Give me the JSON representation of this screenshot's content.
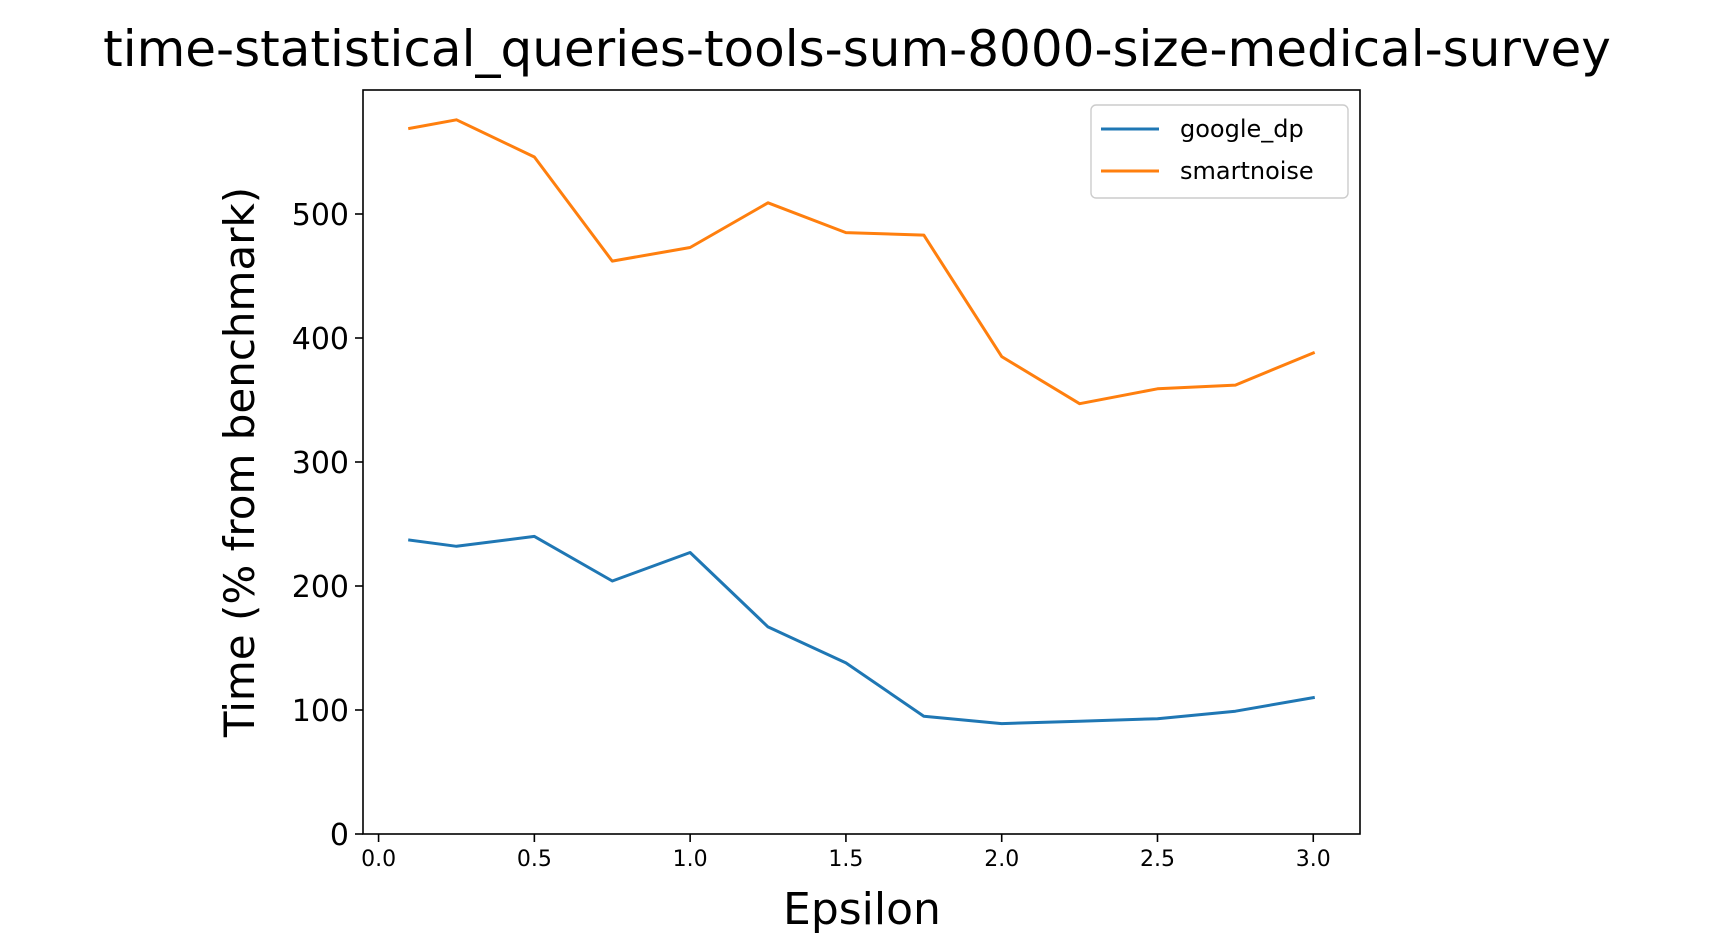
{
  "chart_data": {
    "type": "line",
    "title": "time-statistical_queries-tools-sum-8000-size-medical-survey",
    "xlabel": "Epsilon",
    "ylabel": "Time (% from benchmark)",
    "xlim": [
      -0.05,
      3.15
    ],
    "ylim": [
      0,
      600
    ],
    "xticks": [
      0.0,
      0.5,
      1.0,
      1.5,
      2.0,
      2.5,
      3.0
    ],
    "xtick_labels": [
      "0.0",
      "0.5",
      "1.0",
      "1.5",
      "2.0",
      "2.5",
      "3.0"
    ],
    "yticks": [
      0,
      100,
      200,
      300,
      400,
      500
    ],
    "ytick_labels": [
      "0",
      "100",
      "200",
      "300",
      "400",
      "500"
    ],
    "grid": false,
    "legend_position": "top-right",
    "x": [
      0.1,
      0.25,
      0.5,
      0.75,
      1.0,
      1.25,
      1.5,
      1.75,
      2.0,
      2.25,
      2.5,
      2.75,
      3.0
    ],
    "series": [
      {
        "name": "google_dp",
        "color": "#1f77b4",
        "values": [
          237,
          232,
          240,
          204,
          227,
          167,
          138,
          95,
          89,
          91,
          93,
          99,
          110
        ]
      },
      {
        "name": "smartnoise",
        "color": "#ff7f0e",
        "values": [
          569,
          576,
          546,
          462,
          473,
          509,
          485,
          483,
          385,
          347,
          359,
          362,
          388
        ]
      }
    ]
  }
}
